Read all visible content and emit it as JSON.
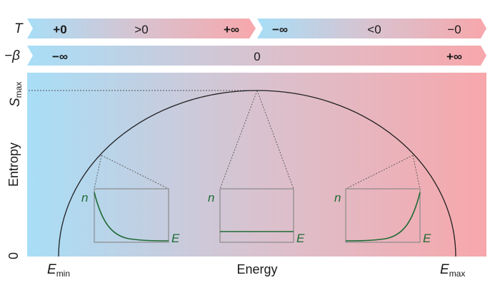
{
  "colors": {
    "cold": "#a8def7",
    "hot": "#f7a7ab",
    "mid": "#d9c2cf",
    "curve": "#1f1f1f",
    "green": "#1f6b35",
    "dotted": "#555555",
    "inset_border": "#8a8a8a"
  },
  "temperature_row": {
    "symbol": "T",
    "left_arrow": {
      "labels": [
        "+0",
        ">0",
        "+∞"
      ]
    },
    "right_arrow": {
      "labels": [
        "−∞",
        "<0",
        "−0"
      ]
    }
  },
  "beta_row": {
    "symbol": "−β",
    "labels": [
      "−∞",
      "0",
      "+∞"
    ]
  },
  "axes": {
    "ylabel": "Entropy",
    "xlabel": "Energy",
    "y_top_label": {
      "main": "S",
      "sub": "max"
    },
    "y_bottom_label": "0",
    "x_left_label": {
      "main": "E",
      "sub": "min"
    },
    "x_right_label": {
      "main": "E",
      "sub": "max"
    }
  },
  "insets": [
    {
      "name": "low-energy",
      "ylabel": "n",
      "xlabel": "E",
      "trend": "decreasing"
    },
    {
      "name": "mid-energy",
      "ylabel": "n",
      "xlabel": "E",
      "trend": "flat"
    },
    {
      "name": "high-energy",
      "ylabel": "n",
      "xlabel": "E",
      "trend": "increasing"
    }
  ]
}
